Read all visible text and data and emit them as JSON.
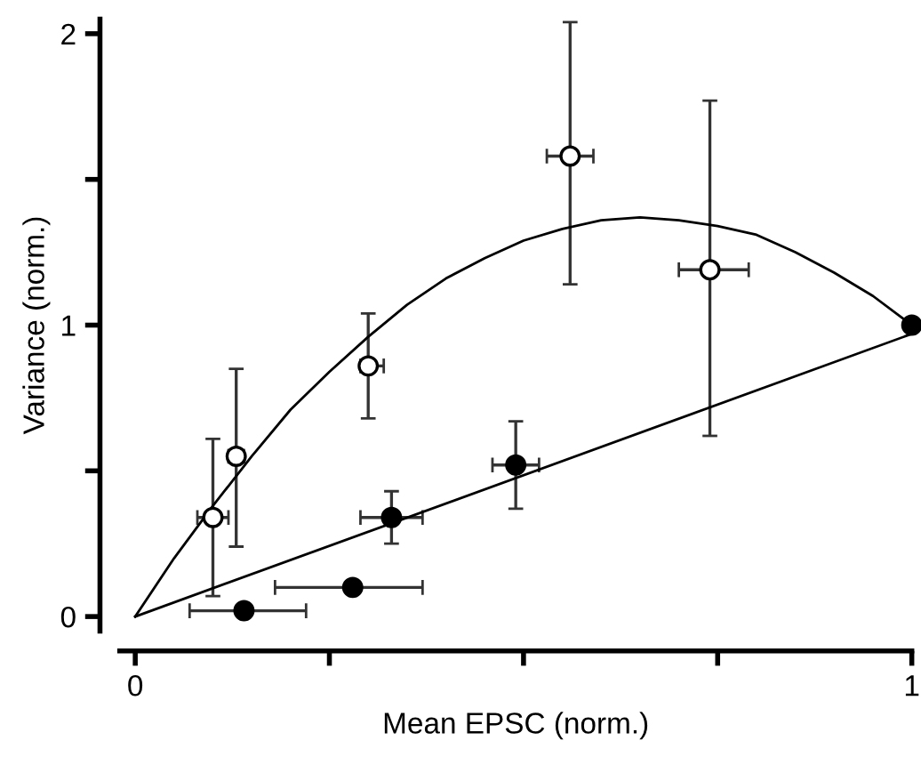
{
  "chart_data": {
    "type": "scatter",
    "xlabel": "Mean EPSC (norm.)",
    "ylabel": "Variance (norm.)",
    "xlim": [
      -0.02,
      1.0
    ],
    "ylim": [
      -0.05,
      2.05
    ],
    "xticks": [
      0,
      {
        "value": 0.25,
        "label": null
      },
      {
        "value": 0.5,
        "label": null
      },
      {
        "value": 0.75,
        "label": null
      },
      1
    ],
    "yticks": [
      0,
      {
        "value": 0.5,
        "label": null
      },
      1,
      {
        "value": 1.5,
        "label": null
      },
      2
    ],
    "grid": false,
    "series": [
      {
        "marker": "circle",
        "color": "#ffffff",
        "x": [
          0.1,
          0.13,
          0.3,
          0.56,
          0.74
        ],
        "values": [
          0.34,
          0.55,
          0.86,
          1.58,
          1.19
        ],
        "errors": [
          [
            0.07,
            0.61
          ],
          [
            0.24,
            0.85
          ],
          [
            0.68,
            1.04
          ],
          [
            1.14,
            2.04
          ],
          [
            0.62,
            1.77
          ]
        ],
        "xerrors": [
          [
            0.08,
            0.12
          ],
          [
            0.12,
            0.14
          ],
          [
            0.29,
            0.32
          ],
          [
            0.53,
            0.59
          ],
          [
            0.7,
            0.79
          ]
        ]
      },
      {
        "marker": "circle",
        "color": "#000000",
        "x": [
          0.14,
          0.28,
          0.33,
          0.49,
          1.0
        ],
        "values": [
          0.02,
          0.1,
          0.34,
          0.52,
          1.0
        ],
        "errors": [
          null,
          null,
          [
            0.25,
            0.43
          ],
          [
            0.37,
            0.67
          ],
          null
        ],
        "xerrors": [
          [
            0.07,
            0.22
          ],
          [
            0.18,
            0.37
          ],
          [
            0.29,
            0.37
          ],
          [
            0.46,
            0.52
          ],
          null
        ]
      },
      {
        "type": "line",
        "marker": "none",
        "line_style": "solid",
        "color": "#000000",
        "x": [
          0,
          0.05,
          0.1,
          0.15,
          0.2,
          0.25,
          0.3,
          0.35,
          0.4,
          0.45,
          0.5,
          0.55,
          0.6,
          0.65,
          0.7,
          0.75,
          0.8,
          0.85,
          0.9,
          0.95,
          1.0
        ],
        "values": [
          0,
          0.2,
          0.38,
          0.55,
          0.71,
          0.84,
          0.96,
          1.07,
          1.16,
          1.23,
          1.29,
          1.33,
          1.36,
          1.37,
          1.36,
          1.34,
          1.31,
          1.25,
          1.18,
          1.1,
          1.0
        ]
      },
      {
        "type": "line",
        "marker": "none",
        "line_style": "solid",
        "color": "#000000",
        "x": [
          0,
          1.0
        ],
        "values": [
          0,
          0.97
        ]
      }
    ]
  }
}
